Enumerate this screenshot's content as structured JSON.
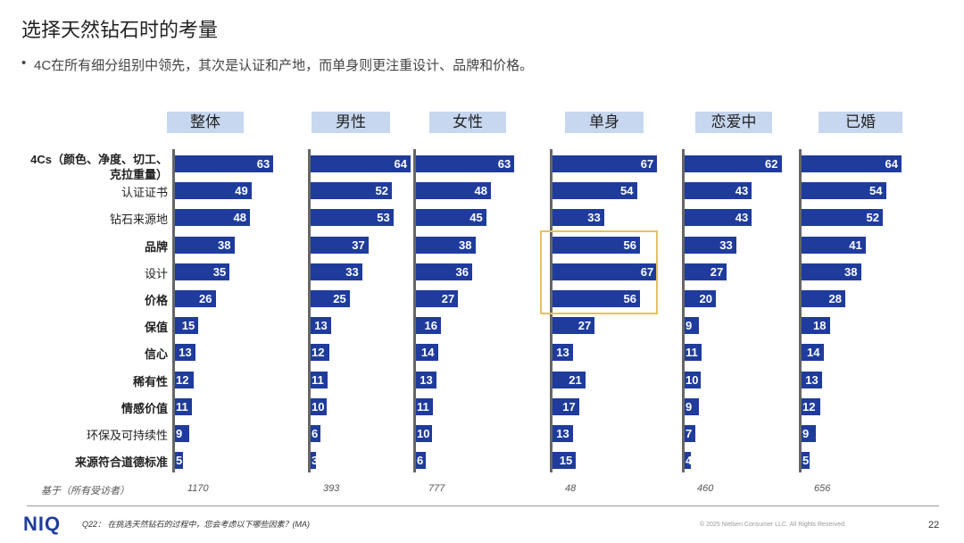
{
  "title": "选择天然钻石时的考量",
  "bullet": "4C在所有细分组别中领先，其次是认证和产地，而单身则更注重设计、品牌和价格。",
  "chart_data": {
    "type": "bar",
    "orientation": "horizontal",
    "categories": [
      "4Cs（颜色、净度、切工、克拉重量）",
      "认证证书",
      "钻石来源地",
      "品牌",
      "设计",
      "价格",
      "保值",
      "信心",
      "稀有性",
      "情感价值",
      "环保及可持续性",
      "来源符合道德标准"
    ],
    "category_lines": [
      [
        "4Cs（颜色、净度、切工、",
        "克拉重量）"
      ],
      [
        "认证证书"
      ],
      [
        "钻石来源地"
      ],
      [
        "品牌"
      ],
      [
        "设计"
      ],
      [
        "价格"
      ],
      [
        "保值"
      ],
      [
        "信心"
      ],
      [
        "稀有性"
      ],
      [
        "情感价值"
      ],
      [
        "环保及可持续性"
      ],
      [
        "来源符合道德标准"
      ]
    ],
    "series": [
      {
        "name": "整体",
        "base": "1170",
        "values": [
          63,
          49,
          48,
          38,
          35,
          26,
          15,
          13,
          12,
          11,
          9,
          5
        ]
      },
      {
        "name": "男性",
        "base": "393",
        "values": [
          64,
          52,
          53,
          37,
          33,
          25,
          13,
          12,
          11,
          10,
          6,
          3
        ]
      },
      {
        "name": "女性",
        "base": "777",
        "values": [
          63,
          48,
          45,
          38,
          36,
          27,
          16,
          14,
          13,
          11,
          10,
          6
        ]
      },
      {
        "name": "单身",
        "base": "48",
        "values": [
          67,
          54,
          33,
          56,
          67,
          56,
          27,
          13,
          21,
          17,
          13,
          15
        ]
      },
      {
        "name": "恋爱中",
        "base": "460",
        "values": [
          62,
          43,
          43,
          33,
          27,
          20,
          9,
          11,
          10,
          9,
          7,
          4
        ]
      },
      {
        "name": "已婚",
        "base": "656",
        "values": [
          64,
          54,
          52,
          41,
          38,
          28,
          18,
          14,
          13,
          12,
          9,
          5
        ]
      }
    ],
    "xlim": [
      0,
      70
    ],
    "highlight": {
      "series": "单身",
      "categories": [
        "品牌",
        "设计",
        "价格"
      ]
    }
  },
  "base_label": "基于（所有受访者）",
  "footer": {
    "logo": "NIQ",
    "question": "Q22： 在挑选天然钻石的过程中，您会考虑以下哪些因素？(MA)",
    "copyright": "© 2025 Nielsen Consumer LLC. All Rights Reserved.",
    "page": "22"
  }
}
